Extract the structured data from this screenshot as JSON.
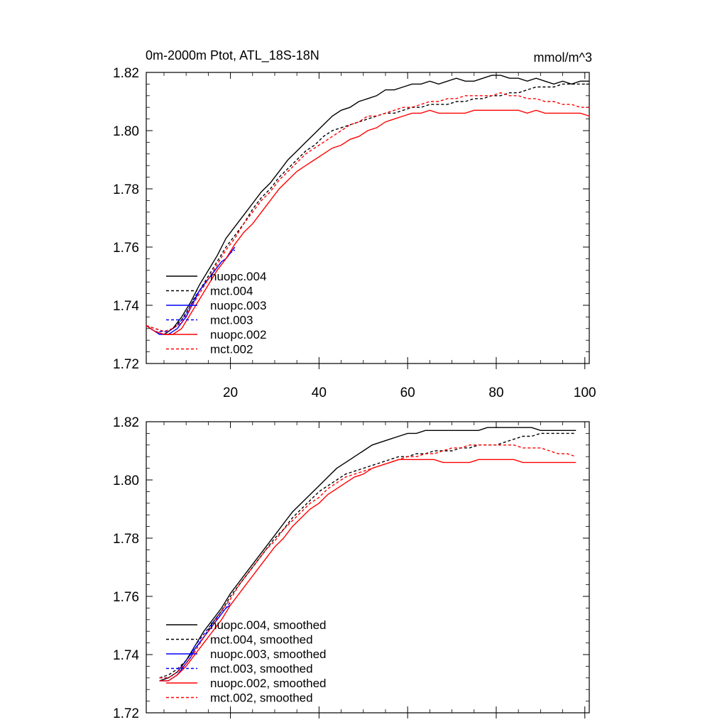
{
  "chart_data": [
    {
      "type": "line",
      "title": "0m-2000m Ptot, ATL_18S-18N",
      "units": "mmol/m^3",
      "xlim": [
        1,
        101
      ],
      "ylim": [
        1.72,
        1.82
      ],
      "xticks": [
        20,
        40,
        60,
        80,
        100
      ],
      "yticks": [
        1.72,
        1.74,
        1.76,
        1.78,
        1.8,
        1.82
      ],
      "ytick_labels": [
        "1.72",
        "1.74",
        "1.76",
        "1.78",
        "1.80",
        "1.82"
      ],
      "legend_position": "bottom-left",
      "series": [
        {
          "name": "nuopc.004",
          "color": "#000000",
          "dash": "solid",
          "x": [
            1,
            3,
            5,
            7,
            9,
            11,
            13,
            15,
            17,
            19,
            21,
            23,
            25,
            27,
            29,
            31,
            33,
            35,
            37,
            39,
            41,
            43,
            45,
            47,
            49,
            51,
            53,
            55,
            57,
            59,
            61,
            63,
            65,
            67,
            69,
            71,
            73,
            75,
            77,
            79,
            81,
            83,
            85,
            87,
            89,
            91,
            93,
            95,
            97,
            99,
            101
          ],
          "y": [
            1.733,
            1.731,
            1.73,
            1.732,
            1.736,
            1.741,
            1.747,
            1.752,
            1.757,
            1.763,
            1.767,
            1.771,
            1.775,
            1.779,
            1.782,
            1.786,
            1.79,
            1.793,
            1.796,
            1.799,
            1.802,
            1.805,
            1.807,
            1.808,
            1.81,
            1.811,
            1.812,
            1.814,
            1.814,
            1.815,
            1.816,
            1.816,
            1.817,
            1.816,
            1.817,
            1.818,
            1.817,
            1.817,
            1.818,
            1.819,
            1.819,
            1.818,
            1.818,
            1.817,
            1.818,
            1.817,
            1.816,
            1.817,
            1.816,
            1.817,
            1.817
          ]
        },
        {
          "name": "mct.004",
          "color": "#000000",
          "dash": "dashed",
          "x": [
            1,
            3,
            5,
            7,
            9,
            11,
            13,
            15,
            17,
            19,
            21,
            23,
            25,
            27,
            29,
            31,
            33,
            35,
            37,
            39,
            41,
            43,
            45,
            47,
            49,
            51,
            53,
            55,
            57,
            59,
            61,
            63,
            65,
            67,
            69,
            71,
            73,
            75,
            77,
            79,
            81,
            83,
            85,
            87,
            89,
            91,
            93,
            95,
            97,
            99,
            101
          ],
          "y": [
            1.733,
            1.732,
            1.731,
            1.732,
            1.735,
            1.74,
            1.745,
            1.75,
            1.755,
            1.76,
            1.764,
            1.768,
            1.773,
            1.777,
            1.78,
            1.784,
            1.787,
            1.79,
            1.793,
            1.795,
            1.798,
            1.8,
            1.801,
            1.802,
            1.803,
            1.804,
            1.805,
            1.806,
            1.806,
            1.807,
            1.808,
            1.808,
            1.809,
            1.809,
            1.809,
            1.81,
            1.81,
            1.811,
            1.811,
            1.812,
            1.812,
            1.813,
            1.813,
            1.814,
            1.815,
            1.815,
            1.815,
            1.816,
            1.816,
            1.816,
            1.816
          ]
        },
        {
          "name": "nuopc.003",
          "color": "#0000ff",
          "dash": "solid",
          "x": [
            1,
            2,
            3,
            4,
            5,
            6,
            7,
            8,
            9,
            10,
            11,
            12,
            13,
            14,
            15,
            16,
            17,
            18,
            19,
            20,
            21
          ],
          "y": [
            1.733,
            1.732,
            1.731,
            1.73,
            1.73,
            1.73,
            1.731,
            1.732,
            1.734,
            1.736,
            1.739,
            1.742,
            1.745,
            1.747,
            1.749,
            1.751,
            1.753,
            1.755,
            1.756,
            1.758,
            1.76
          ]
        },
        {
          "name": "mct.003",
          "color": "#0000ff",
          "dash": "dashed",
          "x": [
            1,
            2,
            3,
            4,
            5,
            6,
            7,
            8,
            9,
            10,
            11,
            12,
            13,
            14,
            15,
            16,
            17,
            18,
            19,
            20,
            21
          ],
          "y": [
            1.733,
            1.732,
            1.731,
            1.731,
            1.731,
            1.731,
            1.732,
            1.733,
            1.735,
            1.737,
            1.74,
            1.743,
            1.745,
            1.747,
            1.749,
            1.751,
            1.753,
            1.755,
            1.756,
            1.758,
            1.759
          ]
        },
        {
          "name": "nuopc.002",
          "color": "#ff0000",
          "dash": "solid",
          "x": [
            1,
            3,
            5,
            7,
            9,
            11,
            13,
            15,
            17,
            19,
            21,
            23,
            25,
            27,
            29,
            31,
            33,
            35,
            37,
            39,
            41,
            43,
            45,
            47,
            49,
            51,
            53,
            55,
            57,
            59,
            61,
            63,
            65,
            67,
            69,
            71,
            73,
            75,
            77,
            79,
            81,
            83,
            85,
            87,
            89,
            91,
            93,
            95,
            97,
            99,
            101
          ],
          "y": [
            1.733,
            1.731,
            1.73,
            1.73,
            1.732,
            1.737,
            1.742,
            1.747,
            1.752,
            1.756,
            1.761,
            1.765,
            1.768,
            1.772,
            1.776,
            1.78,
            1.783,
            1.786,
            1.788,
            1.79,
            1.792,
            1.794,
            1.795,
            1.797,
            1.798,
            1.8,
            1.801,
            1.803,
            1.804,
            1.805,
            1.806,
            1.806,
            1.807,
            1.806,
            1.806,
            1.806,
            1.806,
            1.807,
            1.807,
            1.807,
            1.807,
            1.807,
            1.807,
            1.806,
            1.807,
            1.806,
            1.806,
            1.806,
            1.806,
            1.806,
            1.805
          ]
        },
        {
          "name": "mct.002",
          "color": "#ff0000",
          "dash": "dashed",
          "x": [
            1,
            3,
            5,
            7,
            9,
            11,
            13,
            15,
            17,
            19,
            21,
            23,
            25,
            27,
            29,
            31,
            33,
            35,
            37,
            39,
            41,
            43,
            45,
            47,
            49,
            51,
            53,
            55,
            57,
            59,
            61,
            63,
            65,
            67,
            69,
            71,
            73,
            75,
            77,
            79,
            81,
            83,
            85,
            87,
            89,
            91,
            93,
            95,
            97,
            99,
            101
          ],
          "y": [
            1.733,
            1.732,
            1.731,
            1.732,
            1.734,
            1.739,
            1.744,
            1.749,
            1.754,
            1.759,
            1.763,
            1.768,
            1.772,
            1.776,
            1.779,
            1.783,
            1.786,
            1.789,
            1.792,
            1.794,
            1.796,
            1.798,
            1.8,
            1.802,
            1.803,
            1.805,
            1.805,
            1.806,
            1.807,
            1.808,
            1.808,
            1.809,
            1.81,
            1.81,
            1.811,
            1.811,
            1.812,
            1.812,
            1.812,
            1.812,
            1.813,
            1.812,
            1.812,
            1.811,
            1.811,
            1.81,
            1.81,
            1.809,
            1.809,
            1.808,
            1.808
          ]
        }
      ]
    },
    {
      "type": "line",
      "xlim": [
        1,
        101
      ],
      "ylim": [
        1.72,
        1.82
      ],
      "xticks": [
        20,
        40,
        60,
        80,
        100
      ],
      "yticks": [
        1.72,
        1.74,
        1.76,
        1.78,
        1.8,
        1.82
      ],
      "ytick_labels": [
        "1.72",
        "1.74",
        "1.76",
        "1.78",
        "1.80",
        "1.82"
      ],
      "legend_position": "bottom-left",
      "series": [
        {
          "name": "nuopc.004, smoothed",
          "color": "#000000",
          "dash": "solid",
          "x": [
            4,
            6,
            8,
            10,
            12,
            14,
            16,
            18,
            20,
            22,
            24,
            26,
            28,
            30,
            32,
            34,
            36,
            38,
            40,
            42,
            44,
            46,
            48,
            50,
            52,
            54,
            56,
            58,
            60,
            62,
            64,
            66,
            68,
            70,
            72,
            74,
            76,
            78,
            80,
            82,
            84,
            86,
            88,
            90,
            92,
            94,
            96,
            98
          ],
          "y": [
            1.731,
            1.732,
            1.734,
            1.738,
            1.743,
            1.748,
            1.752,
            1.756,
            1.761,
            1.765,
            1.769,
            1.773,
            1.777,
            1.781,
            1.785,
            1.789,
            1.792,
            1.795,
            1.798,
            1.801,
            1.804,
            1.806,
            1.808,
            1.81,
            1.812,
            1.813,
            1.814,
            1.815,
            1.816,
            1.816,
            1.817,
            1.817,
            1.817,
            1.817,
            1.817,
            1.817,
            1.817,
            1.818,
            1.818,
            1.818,
            1.818,
            1.818,
            1.818,
            1.817,
            1.817,
            1.817,
            1.817,
            1.817
          ]
        },
        {
          "name": "mct.004, smoothed",
          "color": "#000000",
          "dash": "dashed",
          "x": [
            4,
            6,
            8,
            10,
            12,
            14,
            16,
            18,
            20,
            22,
            24,
            26,
            28,
            30,
            32,
            34,
            36,
            38,
            40,
            42,
            44,
            46,
            48,
            50,
            52,
            54,
            56,
            58,
            60,
            62,
            64,
            66,
            68,
            70,
            72,
            74,
            76,
            78,
            80,
            82,
            84,
            86,
            88,
            90,
            92,
            94,
            96,
            98
          ],
          "y": [
            1.732,
            1.733,
            1.735,
            1.738,
            1.742,
            1.746,
            1.751,
            1.755,
            1.76,
            1.764,
            1.768,
            1.772,
            1.776,
            1.78,
            1.783,
            1.787,
            1.79,
            1.793,
            1.796,
            1.798,
            1.8,
            1.802,
            1.803,
            1.804,
            1.805,
            1.806,
            1.807,
            1.808,
            1.808,
            1.809,
            1.809,
            1.81,
            1.81,
            1.81,
            1.811,
            1.811,
            1.812,
            1.812,
            1.812,
            1.813,
            1.814,
            1.815,
            1.815,
            1.816,
            1.816,
            1.816,
            1.816,
            1.816
          ]
        },
        {
          "name": "nuopc.003, smoothed",
          "color": "#0000ff",
          "dash": "solid",
          "x": [
            4,
            5,
            6,
            7,
            8,
            9,
            10,
            11,
            12,
            13,
            14,
            15,
            16,
            17,
            18,
            19,
            20
          ],
          "y": [
            1.731,
            1.731,
            1.731,
            1.732,
            1.733,
            1.735,
            1.737,
            1.739,
            1.742,
            1.744,
            1.746,
            1.748,
            1.75,
            1.752,
            1.754,
            1.756,
            1.757
          ]
        },
        {
          "name": "mct.003, smoothed",
          "color": "#0000ff",
          "dash": "dashed",
          "x": [
            4,
            5,
            6,
            7,
            8,
            9,
            10,
            11,
            12,
            13,
            14,
            15,
            16,
            17,
            18,
            19,
            20
          ],
          "y": [
            1.732,
            1.732,
            1.732,
            1.733,
            1.734,
            1.736,
            1.738,
            1.74,
            1.743,
            1.745,
            1.747,
            1.749,
            1.751,
            1.753,
            1.755,
            1.756,
            1.758
          ]
        },
        {
          "name": "nuopc.002, smoothed",
          "color": "#ff0000",
          "dash": "solid",
          "x": [
            4,
            6,
            8,
            10,
            12,
            14,
            16,
            18,
            20,
            22,
            24,
            26,
            28,
            30,
            32,
            34,
            36,
            38,
            40,
            42,
            44,
            46,
            48,
            50,
            52,
            54,
            56,
            58,
            60,
            62,
            64,
            66,
            68,
            70,
            72,
            74,
            76,
            78,
            80,
            82,
            84,
            86,
            88,
            90,
            92,
            94,
            96,
            98
          ],
          "y": [
            1.731,
            1.731,
            1.733,
            1.736,
            1.74,
            1.744,
            1.748,
            1.752,
            1.757,
            1.761,
            1.765,
            1.769,
            1.773,
            1.777,
            1.78,
            1.784,
            1.787,
            1.79,
            1.792,
            1.795,
            1.797,
            1.799,
            1.801,
            1.802,
            1.804,
            1.805,
            1.806,
            1.807,
            1.807,
            1.807,
            1.807,
            1.807,
            1.806,
            1.806,
            1.806,
            1.806,
            1.807,
            1.807,
            1.807,
            1.807,
            1.807,
            1.806,
            1.806,
            1.806,
            1.806,
            1.806,
            1.806,
            1.806
          ]
        },
        {
          "name": "mct.002, smoothed",
          "color": "#ff0000",
          "dash": "dashed",
          "x": [
            4,
            6,
            8,
            10,
            12,
            14,
            16,
            18,
            20,
            22,
            24,
            26,
            28,
            30,
            32,
            34,
            36,
            38,
            40,
            42,
            44,
            46,
            48,
            50,
            52,
            54,
            56,
            58,
            60,
            62,
            64,
            66,
            68,
            70,
            72,
            74,
            76,
            78,
            80,
            82,
            84,
            86,
            88,
            90,
            92,
            94,
            96,
            98
          ],
          "y": [
            1.732,
            1.732,
            1.734,
            1.737,
            1.741,
            1.746,
            1.75,
            1.755,
            1.759,
            1.764,
            1.768,
            1.772,
            1.776,
            1.779,
            1.783,
            1.786,
            1.789,
            1.792,
            1.794,
            1.797,
            1.799,
            1.801,
            1.802,
            1.803,
            1.804,
            1.805,
            1.806,
            1.807,
            1.808,
            1.808,
            1.809,
            1.809,
            1.81,
            1.811,
            1.811,
            1.812,
            1.812,
            1.812,
            1.812,
            1.812,
            1.812,
            1.811,
            1.811,
            1.811,
            1.81,
            1.809,
            1.809,
            1.808
          ]
        }
      ]
    }
  ]
}
